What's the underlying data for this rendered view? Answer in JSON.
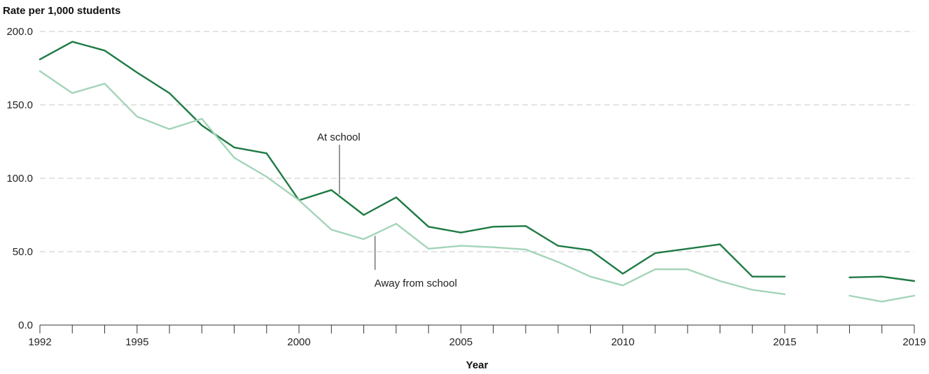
{
  "chart_data": {
    "type": "line",
    "title": "",
    "ylabel": "Rate per 1,000 students",
    "xlabel": "Year",
    "ylim": [
      0,
      200
    ],
    "xlim": [
      1992,
      2019
    ],
    "y_ticks": [
      "0.0",
      "50.0",
      "100.0",
      "150.0",
      "200.0"
    ],
    "y_tick_values": [
      0,
      50,
      100,
      150,
      200
    ],
    "x_tick_labels": [
      "1992",
      "1995",
      "2000",
      "2005",
      "2010",
      "2015",
      "2019"
    ],
    "x_tick_values": [
      1992,
      1995,
      2000,
      2005,
      2010,
      2015,
      2019
    ],
    "grid": true,
    "x": [
      1992,
      1993,
      1994,
      1995,
      1996,
      1997,
      1998,
      1999,
      2000,
      2001,
      2002,
      2003,
      2004,
      2005,
      2006,
      2007,
      2008,
      2009,
      2010,
      2011,
      2012,
      2013,
      2014,
      2015,
      2016,
      2017,
      2018,
      2019
    ],
    "series": [
      {
        "name": "At school",
        "color": "#1e7a44",
        "values": [
          181,
          193,
          187,
          172,
          158,
          136,
          121,
          117,
          85,
          92,
          75,
          87,
          67,
          63,
          67,
          67.5,
          54,
          51,
          35,
          49,
          52,
          55,
          33,
          33,
          null,
          32.5,
          33,
          30
        ]
      },
      {
        "name": "Away from school",
        "color": "#a3d4b8",
        "values": [
          173,
          158,
          164.5,
          142,
          133.5,
          140.5,
          114,
          101,
          85,
          65,
          58.5,
          69,
          52,
          54,
          53,
          51.5,
          43,
          33,
          27,
          38,
          38,
          30,
          24,
          21,
          null,
          20,
          16,
          20
        ]
      }
    ],
    "annotations": [
      {
        "text": "At school",
        "series": "At school",
        "x": 2001.25
      },
      {
        "text": "Away from school",
        "series": "Away from school",
        "x": 2002.35
      }
    ]
  }
}
